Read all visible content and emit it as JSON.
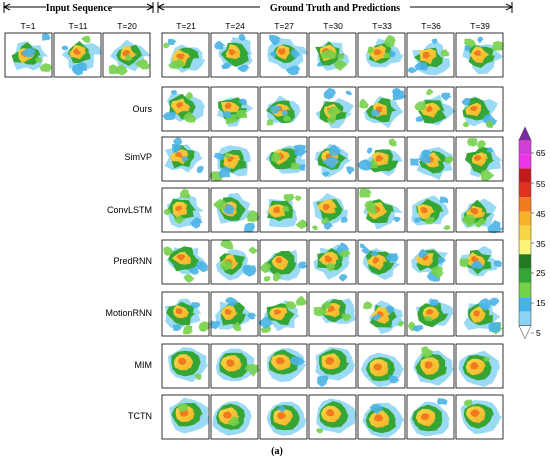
{
  "headers": {
    "input_sequence": "Input Sequence",
    "ground_truth_predictions": "Ground Truth and Predictions"
  },
  "input_times": [
    "T=1",
    "T=11",
    "T=20"
  ],
  "output_times": [
    "T=21",
    "T=24",
    "T=27",
    "T=30",
    "T=33",
    "T=36",
    "T=39"
  ],
  "models": [
    "Ours",
    "SimVP",
    "ConvLSTM",
    "PredRNN",
    "MotionRNN",
    "MIM",
    "TCTN"
  ],
  "colorbar": {
    "labels": [
      "65",
      "55",
      "45",
      "35",
      "25",
      "15",
      "5"
    ],
    "colors": [
      "#7e2aa6",
      "#d23fd6",
      "#ea36e6",
      "#c21a1a",
      "#e0321f",
      "#f07a1e",
      "#f6b327",
      "#f7d646",
      "#fcf37a",
      "#217a21",
      "#35a635",
      "#75d04a",
      "#49b3e6",
      "#8ad3f2",
      "#ffffff"
    ]
  },
  "caption": "(a)"
}
